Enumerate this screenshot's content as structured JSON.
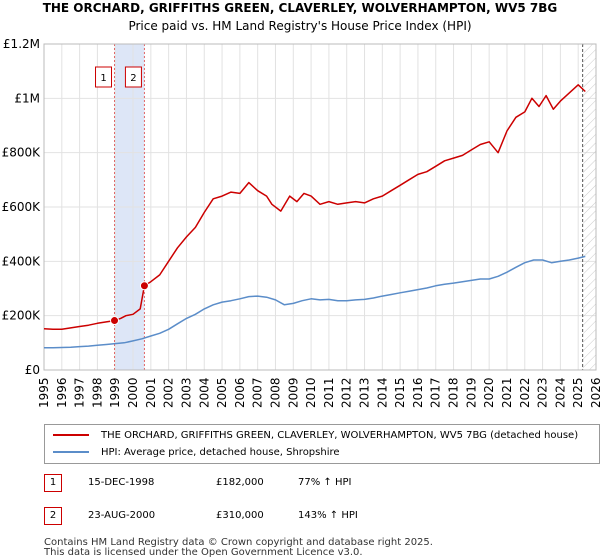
{
  "header": {
    "title": "THE ORCHARD, GRIFFITHS GREEN, CLAVERLEY, WOLVERHAMPTON, WV5 7BG",
    "subtitle": "Price paid vs. HM Land Registry's House Price Index (HPI)"
  },
  "chart_data": {
    "type": "line",
    "title": "THE ORCHARD, GRIFFITHS GREEN, CLAVERLEY, WOLVERHAMPTON, WV5 7BG",
    "subtitle": "Price paid vs. HM Land Registry's House Price Index (HPI)",
    "xlim": [
      1995,
      2026
    ],
    "ylim": [
      0,
      1200000
    ],
    "x_ticks": [
      1995,
      1996,
      1997,
      1998,
      1999,
      2000,
      2001,
      2002,
      2003,
      2004,
      2005,
      2006,
      2007,
      2008,
      2009,
      2010,
      2011,
      2012,
      2013,
      2014,
      2015,
      2016,
      2017,
      2018,
      2019,
      2020,
      2021,
      2022,
      2023,
      2024,
      2025,
      2026
    ],
    "y_ticks": [
      {
        "value": 0,
        "label": "£0"
      },
      {
        "value": 200000,
        "label": "£200K"
      },
      {
        "value": 400000,
        "label": "£400K"
      },
      {
        "value": 600000,
        "label": "£600K"
      },
      {
        "value": 800000,
        "label": "£800K"
      },
      {
        "value": 1000000,
        "label": "£1M"
      },
      {
        "value": 1200000,
        "label": "£1.2M"
      }
    ],
    "grid": true,
    "series": [
      {
        "name": "THE ORCHARD, GRIFFITHS GREEN, CLAVERLEY, WOLVERHAMPTON, WV5 7BG (detached house)",
        "color": "#cc0000",
        "x": [
          1995.0,
          1995.5,
          1996.0,
          1996.5,
          1997.0,
          1997.5,
          1998.0,
          1998.5,
          1998.96,
          1999.3,
          1999.6,
          2000.0,
          2000.4,
          2000.64,
          2001.0,
          2001.5,
          2002.0,
          2002.5,
          2003.0,
          2003.5,
          2004.0,
          2004.5,
          2005.0,
          2005.5,
          2006.0,
          2006.5,
          2007.0,
          2007.5,
          2007.8,
          2008.3,
          2008.8,
          2009.2,
          2009.6,
          2010.0,
          2010.5,
          2011.0,
          2011.5,
          2012.0,
          2012.5,
          2013.0,
          2013.5,
          2014.0,
          2014.5,
          2015.0,
          2015.5,
          2016.0,
          2016.5,
          2017.0,
          2017.5,
          2018.0,
          2018.5,
          2019.0,
          2019.5,
          2020.0,
          2020.5,
          2021.0,
          2021.5,
          2022.0,
          2022.4,
          2022.8,
          2023.2,
          2023.6,
          2024.0,
          2024.5,
          2025.0,
          2025.4
        ],
        "values": [
          152000,
          150000,
          150000,
          155000,
          160000,
          165000,
          172000,
          177000,
          182000,
          190000,
          200000,
          205000,
          225000,
          310000,
          325000,
          350000,
          400000,
          450000,
          490000,
          525000,
          580000,
          630000,
          640000,
          655000,
          650000,
          690000,
          660000,
          640000,
          610000,
          585000,
          640000,
          620000,
          650000,
          640000,
          610000,
          620000,
          610000,
          615000,
          620000,
          615000,
          630000,
          640000,
          660000,
          680000,
          700000,
          720000,
          730000,
          750000,
          770000,
          780000,
          790000,
          810000,
          830000,
          840000,
          800000,
          880000,
          930000,
          950000,
          1000000,
          970000,
          1010000,
          960000,
          990000,
          1020000,
          1050000,
          1025000
        ]
      },
      {
        "name": "HPI: Average price, detached house, Shropshire",
        "color": "#5b8dc9",
        "x": [
          1995.0,
          1995.5,
          1996.0,
          1996.5,
          1997.0,
          1997.5,
          1998.0,
          1998.5,
          1999.0,
          1999.5,
          2000.0,
          2000.5,
          2001.0,
          2001.5,
          2002.0,
          2002.5,
          2003.0,
          2003.5,
          2004.0,
          2004.5,
          2005.0,
          2005.5,
          2006.0,
          2006.5,
          2007.0,
          2007.5,
          2008.0,
          2008.5,
          2009.0,
          2009.5,
          2010.0,
          2010.5,
          2011.0,
          2011.5,
          2012.0,
          2012.5,
          2013.0,
          2013.5,
          2014.0,
          2014.5,
          2015.0,
          2015.5,
          2016.0,
          2016.5,
          2017.0,
          2017.5,
          2018.0,
          2018.5,
          2019.0,
          2019.5,
          2020.0,
          2020.5,
          2021.0,
          2021.5,
          2022.0,
          2022.5,
          2023.0,
          2023.5,
          2024.0,
          2024.5,
          2025.0,
          2025.4
        ],
        "values": [
          82000,
          82000,
          83000,
          84000,
          86000,
          88000,
          91000,
          94000,
          97000,
          100000,
          107000,
          115000,
          125000,
          135000,
          150000,
          170000,
          190000,
          205000,
          225000,
          240000,
          250000,
          255000,
          262000,
          270000,
          272000,
          268000,
          258000,
          240000,
          245000,
          255000,
          262000,
          258000,
          260000,
          255000,
          255000,
          258000,
          260000,
          265000,
          272000,
          278000,
          284000,
          290000,
          296000,
          302000,
          310000,
          316000,
          320000,
          325000,
          330000,
          335000,
          335000,
          345000,
          360000,
          378000,
          395000,
          405000,
          405000,
          395000,
          400000,
          405000,
          412000,
          418000
        ]
      }
    ],
    "vlines": [
      {
        "x": 2025.25,
        "color": "#555555",
        "style": "dashed"
      }
    ],
    "shaded_ranges": [
      {
        "x0": 1998.96,
        "x1": 2000.64,
        "color": "#dde6f7"
      }
    ],
    "markers": [
      {
        "label": "1",
        "x": 1998.96,
        "value": 182000
      },
      {
        "label": "2",
        "x": 2000.64,
        "value": 310000
      }
    ]
  },
  "legend": {
    "property_label": "THE ORCHARD, GRIFFITHS GREEN, CLAVERLEY, WOLVERHAMPTON, WV5 7BG (detached house)",
    "hpi_label": "HPI: Average price, detached house, Shropshire"
  },
  "transactions": [
    {
      "num": "1",
      "date": "15-DEC-1998",
      "price": "£182,000",
      "hpi": "77% ↑ HPI"
    },
    {
      "num": "2",
      "date": "23-AUG-2000",
      "price": "£310,000",
      "hpi": "143% ↑ HPI"
    }
  ],
  "footer": {
    "line1": "Contains HM Land Registry data © Crown copyright and database right 2025.",
    "line2": "This data is licensed under the Open Government Licence v3.0."
  }
}
